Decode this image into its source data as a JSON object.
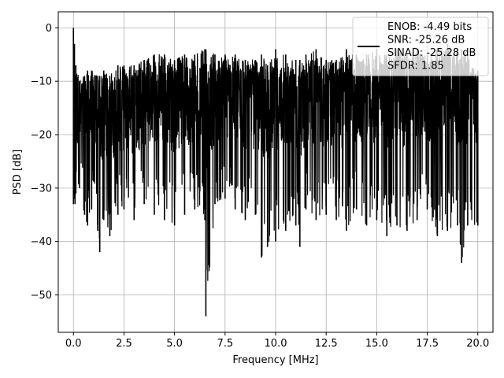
{
  "chart_data": {
    "type": "line",
    "xlabel": "Frequency [MHz]",
    "ylabel": "PSD [dB]",
    "xlim": [
      -0.75,
      20.75
    ],
    "ylim": [
      -57,
      3
    ],
    "xticks": [
      0.0,
      2.5,
      5.0,
      7.5,
      10.0,
      12.5,
      15.0,
      17.5,
      20.0
    ],
    "xtick_labels": [
      "0.0",
      "2.5",
      "5.0",
      "7.5",
      "10.0",
      "12.5",
      "15.0",
      "17.5",
      "20.0"
    ],
    "yticks": [
      0,
      -10,
      -20,
      -30,
      -40,
      -50
    ],
    "ytick_labels": [
      "0",
      "−10",
      "−20",
      "−30",
      "−40",
      "−50"
    ],
    "grid": true,
    "legend": {
      "placement": "top-right",
      "lines": [
        "ENOB: -4.49 bits",
        "SNR: -25.26 dB",
        "SINAD: -25.28 dB",
        "SFDR: 1.85"
      ]
    },
    "series": [
      {
        "color": "#000000",
        "x": [
          0.0,
          0.02,
          0.05,
          0.08,
          0.12,
          0.3,
          0.55,
          0.7,
          0.9,
          1.2,
          1.3,
          1.5,
          1.8,
          2.2,
          2.5,
          3.0,
          3.5,
          4.0,
          4.5,
          5.0,
          5.5,
          6.0,
          6.5,
          6.55,
          7.0,
          7.5,
          8.0,
          8.5,
          9.0,
          9.3,
          9.6,
          10.0,
          10.5,
          11.0,
          11.2,
          11.5,
          12.0,
          12.5,
          13.0,
          13.5,
          14.0,
          14.5,
          15.0,
          15.5,
          16.0,
          16.5,
          17.0,
          17.5,
          18.0,
          18.5,
          19.0,
          19.2,
          19.5,
          20.0
        ],
        "upper": [
          0,
          -5,
          -3,
          -9,
          -7,
          -10,
          -9,
          -8,
          -8,
          -9,
          -9,
          -8,
          -9,
          -7,
          -7,
          -7,
          -6,
          -5,
          -5,
          -6,
          -5,
          -5,
          -4,
          -4,
          -5,
          -5,
          -5,
          -6,
          -6,
          -5,
          -7,
          -4,
          -5,
          -6,
          -6,
          -5,
          -4,
          -6,
          -6,
          -4,
          -5,
          -5,
          -4,
          -5,
          -4,
          -5,
          -4,
          -5,
          -4,
          -3,
          -4,
          -4,
          -5,
          -8
        ],
        "lower": [
          -33,
          -28,
          -32,
          -33,
          -31,
          -30,
          -35,
          -37,
          -34,
          -38,
          -42,
          -36,
          -39,
          -35,
          -34,
          -36,
          -33,
          -35,
          -36,
          -37,
          -35,
          -34,
          -36,
          -54,
          -33,
          -32,
          -34,
          -36,
          -35,
          -43,
          -41,
          -40,
          -38,
          -37,
          -41,
          -34,
          -36,
          -35,
          -36,
          -38,
          -34,
          -37,
          -36,
          -39,
          -37,
          -38,
          -36,
          -34,
          -39,
          -38,
          -37,
          -44,
          -37,
          -37
        ]
      }
    ]
  }
}
